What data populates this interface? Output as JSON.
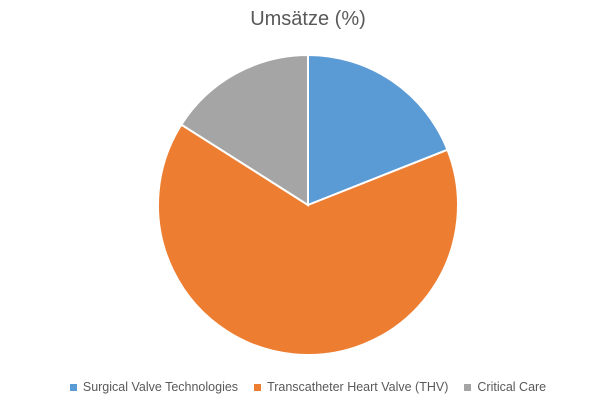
{
  "chart_data": {
    "type": "pie",
    "title": "Umsätze (%)",
    "categories": [
      "Surgical Valve Technologies",
      "Transcatheter Heart Valve (THV)",
      "Critical Care"
    ],
    "values": [
      19,
      65,
      16
    ],
    "colors": [
      "#5b9bd5",
      "#ed7d31",
      "#a5a5a5"
    ],
    "legend_position": "bottom"
  }
}
